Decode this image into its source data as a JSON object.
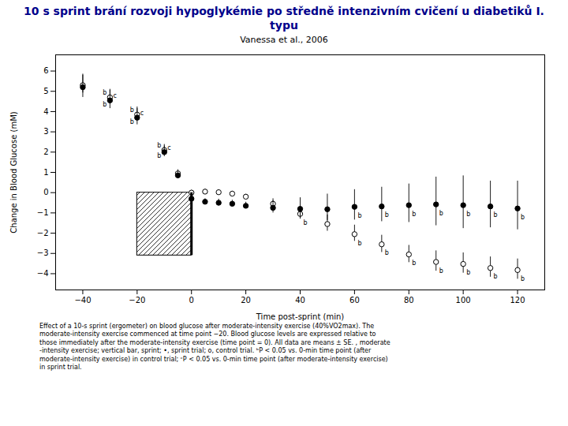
{
  "chart_data": {
    "type": "errorbar_scatter",
    "title": "10 s sprint brání rozvoji hypoglykémie po středně intenzivním cvičení  u diabetiků I.\ntypu",
    "title_color": "#00008B",
    "subtitle": "Vanessa et al., 2006",
    "caption": "Effect of a 10-s sprint (ergometer) on blood glucose after moderate-intensity exercise (40%VO2max). The\nmoderate-intensity exercise commenced at time point −20. Blood glucose levels are expressed relative to\nthose immediately after the moderate-intensity exercise (time point = 0). All data are means ± SE. , moderate\n-intensity exercise; vertical bar, sprint; •, sprint trial; o, control trial.  ᵇP < 0.05 vs. 0-min time point (after\nmoderate-intensity exercise) in control trial; ᶜP < 0.05 vs. 0-min time point (after moderate-intensity exercise)\nin sprint trial.",
    "xlabel": "Time post-sprint (min)",
    "ylabel": "Change in Blood Glucose (mM)",
    "xlim": [
      -50,
      130
    ],
    "ylim": [
      -4.8,
      6.8
    ],
    "xticks": [
      -40,
      -20,
      0,
      20,
      40,
      60,
      80,
      100,
      120
    ],
    "yticks": [
      -4,
      -3,
      -2,
      -1,
      0,
      1,
      2,
      3,
      4,
      5,
      6
    ],
    "grid": false,
    "series": [
      {
        "marker": "open",
        "color": "black",
        "x": [
          -40,
          -30,
          -20,
          -10,
          -5,
          0,
          5,
          10,
          15,
          20,
          30,
          40,
          50,
          60,
          70,
          80,
          90,
          100,
          110,
          120
        ],
        "values": [
          5.3,
          4.7,
          3.85,
          2.1,
          0.95,
          0.0,
          0.05,
          0.02,
          -0.05,
          -0.2,
          -0.55,
          -1.05,
          -1.55,
          -2.05,
          -2.55,
          -3.05,
          -3.42,
          -3.52,
          -3.72,
          -3.82
        ],
        "yerr_upper": [
          0.5,
          0.4,
          0.38,
          0.28,
          0.18,
          0.12,
          0.12,
          0.12,
          0.12,
          0.12,
          0.25,
          0.35,
          0.45,
          0.45,
          0.45,
          0.45,
          0.55,
          0.55,
          0.55,
          0.55
        ],
        "yerr_lower": [
          0.38,
          0.32,
          0.3,
          0.22,
          0.12,
          0.08,
          0.08,
          0.08,
          0.08,
          0.08,
          0.18,
          0.25,
          0.35,
          0.35,
          0.4,
          0.4,
          0.45,
          0.45,
          0.45,
          0.45
        ]
      },
      {
        "marker": "filled",
        "color": "black",
        "x": [
          -40,
          -30,
          -20,
          -10,
          -5,
          0,
          5,
          10,
          15,
          20,
          30,
          40,
          50,
          60,
          70,
          80,
          90,
          100,
          110,
          120
        ],
        "values": [
          5.2,
          4.55,
          3.7,
          2.0,
          0.85,
          -0.3,
          -0.45,
          -0.5,
          -0.55,
          -0.65,
          -0.75,
          -0.8,
          -0.82,
          -0.7,
          -0.68,
          -0.62,
          -0.58,
          -0.62,
          -0.68,
          -0.78
        ],
        "yerr_upper": [
          0.65,
          0.5,
          0.45,
          0.3,
          0.2,
          0.18,
          0.15,
          0.18,
          0.18,
          0.18,
          0.35,
          0.55,
          0.75,
          0.85,
          0.95,
          1.05,
          1.35,
          1.45,
          1.25,
          1.35
        ],
        "yerr_lower": [
          0.5,
          0.4,
          0.35,
          0.22,
          0.15,
          0.12,
          0.12,
          0.12,
          0.12,
          0.12,
          0.25,
          0.45,
          0.55,
          0.65,
          0.75,
          0.85,
          1.05,
          1.15,
          1.05,
          1.05
        ]
      }
    ],
    "hatch_box": {
      "x1": -20,
      "x2": 0,
      "y1": -3.1,
      "y2": 0
    },
    "sprint_bar": {
      "x": 0,
      "y1": -3.1,
      "y2": 0
    },
    "annotations": [
      {
        "text": "b",
        "x": -30,
        "y": 4.7,
        "position": "upper-left"
      },
      {
        "text": "b",
        "x": -30,
        "y": 4.55,
        "position": "lower-left"
      },
      {
        "text": "c",
        "x": -30,
        "y": 4.55,
        "position": "upper-right"
      },
      {
        "text": "b",
        "x": -20,
        "y": 3.85,
        "position": "upper-left"
      },
      {
        "text": "b",
        "x": -20,
        "y": 3.7,
        "position": "lower-left"
      },
      {
        "text": "c",
        "x": -20,
        "y": 3.7,
        "position": "upper-right"
      },
      {
        "text": "b",
        "x": -10,
        "y": 2.1,
        "position": "upper-left"
      },
      {
        "text": "b",
        "x": -10,
        "y": 2.0,
        "position": "lower-left"
      },
      {
        "text": "c",
        "x": -10,
        "y": 2.0,
        "position": "upper-right"
      },
      {
        "text": "b",
        "x": 40,
        "y": -1.05,
        "position": "lower-right"
      },
      {
        "text": "b",
        "x": 60,
        "y": -2.05,
        "position": "lower-right"
      },
      {
        "text": "b",
        "x": 70,
        "y": -2.55,
        "position": "lower-right"
      },
      {
        "text": "b",
        "x": 80,
        "y": -3.05,
        "position": "lower-right"
      },
      {
        "text": "b",
        "x": 90,
        "y": -3.42,
        "position": "lower-right"
      },
      {
        "text": "b",
        "x": 100,
        "y": -3.52,
        "position": "lower-right"
      },
      {
        "text": "b",
        "x": 110,
        "y": -3.72,
        "position": "lower-right"
      },
      {
        "text": "b",
        "x": 120,
        "y": -3.82,
        "position": "lower-right"
      },
      {
        "text": "b",
        "x": 60,
        "y": -0.7,
        "position": "lower-right"
      },
      {
        "text": "b",
        "x": 70,
        "y": -0.68,
        "position": "lower-right"
      },
      {
        "text": "b",
        "x": 80,
        "y": -0.62,
        "position": "lower-right"
      },
      {
        "text": "b",
        "x": 90,
        "y": -0.58,
        "position": "lower-right"
      },
      {
        "text": "b",
        "x": 100,
        "y": -0.62,
        "position": "lower-right"
      },
      {
        "text": "b",
        "x": 110,
        "y": -0.68,
        "position": "lower-right"
      },
      {
        "text": "b",
        "x": 120,
        "y": -0.78,
        "position": "lower-right"
      }
    ]
  }
}
